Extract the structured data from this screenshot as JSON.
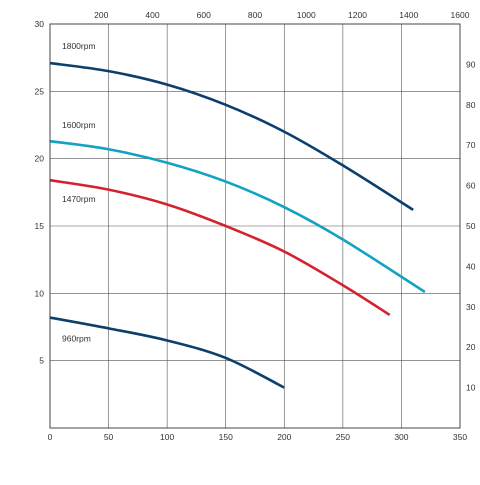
{
  "chart_data": {
    "type": "line",
    "grid": true,
    "x_bottom": {
      "range": [
        0,
        350
      ],
      "ticks": [
        0,
        50,
        100,
        150,
        200,
        250,
        300,
        350
      ]
    },
    "x_top": {
      "range": [
        0,
        1600
      ],
      "ticks": [
        200,
        400,
        600,
        800,
        1000,
        1200,
        1400,
        1600
      ]
    },
    "y_left": {
      "range": [
        0,
        30
      ],
      "ticks": [
        5,
        10,
        15,
        20,
        25,
        30
      ]
    },
    "y_right": {
      "range": [
        0,
        100
      ],
      "ticks": [
        10,
        20,
        30,
        40,
        50,
        60,
        70,
        80,
        90
      ]
    },
    "series": [
      {
        "name": "1800rpm",
        "color": "#0d3f6e",
        "x": [
          0,
          50,
          100,
          150,
          200,
          250,
          310
        ],
        "y": [
          27.1,
          26.5,
          25.5,
          24.0,
          22.0,
          19.5,
          16.2
        ]
      },
      {
        "name": "1600rpm",
        "color": "#13a3c2",
        "x": [
          0,
          50,
          100,
          150,
          200,
          250,
          320
        ],
        "y": [
          21.3,
          20.7,
          19.7,
          18.3,
          16.4,
          14.0,
          10.1
        ]
      },
      {
        "name": "1470rpm",
        "color": "#d4232f",
        "x": [
          0,
          50,
          100,
          150,
          200,
          250,
          290
        ],
        "y": [
          18.4,
          17.7,
          16.6,
          15.0,
          13.1,
          10.6,
          8.4
        ]
      },
      {
        "name": "960rpm",
        "color": "#0d3f6e",
        "x": [
          0,
          50,
          100,
          150,
          200
        ],
        "y": [
          8.2,
          7.4,
          6.5,
          5.2,
          3.0
        ]
      }
    ]
  }
}
